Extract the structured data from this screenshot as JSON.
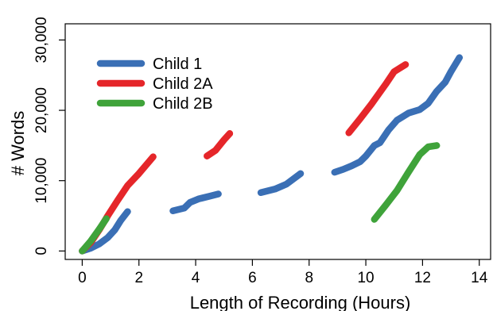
{
  "chart_data": {
    "type": "line",
    "title": "",
    "xlabel": "Length of Recording (Hours)",
    "ylabel": "# Words",
    "xlim": [
      -0.6,
      14.4
    ],
    "ylim": [
      -1200,
      32300
    ],
    "x_ticks": [
      0,
      2,
      4,
      6,
      8,
      10,
      12,
      14
    ],
    "y_ticks": [
      0,
      10000,
      20000,
      30000
    ],
    "x_tick_labels": [
      "0",
      "2",
      "4",
      "6",
      "8",
      "10",
      "12",
      "14"
    ],
    "y_tick_labels": [
      "0",
      "10,000",
      "20,000",
      "30,000"
    ],
    "grid": false,
    "legend_position": "top-left",
    "series": [
      {
        "name": "Child 1",
        "color": "#3a6fb5",
        "segments": [
          [
            [
              0.0,
              0
            ],
            [
              0.3,
              400
            ],
            [
              0.6,
              1000
            ],
            [
              0.9,
              1900
            ],
            [
              1.15,
              3000
            ],
            [
              1.35,
              4300
            ],
            [
              1.6,
              5600
            ]
          ],
          [
            [
              3.2,
              5700
            ],
            [
              3.6,
              6100
            ],
            [
              3.8,
              6900
            ],
            [
              4.1,
              7400
            ],
            [
              4.5,
              7800
            ],
            [
              4.8,
              8100
            ]
          ],
          [
            [
              6.3,
              8300
            ],
            [
              6.8,
              8800
            ],
            [
              7.2,
              9500
            ],
            [
              7.7,
              11000
            ]
          ],
          [
            [
              8.9,
              11200
            ],
            [
              9.2,
              11600
            ],
            [
              9.5,
              12100
            ],
            [
              9.8,
              12700
            ],
            [
              10.0,
              13500
            ],
            [
              10.3,
              15000
            ],
            [
              10.5,
              15400
            ],
            [
              10.8,
              17200
            ],
            [
              11.1,
              18600
            ],
            [
              11.5,
              19600
            ],
            [
              11.9,
              20100
            ],
            [
              12.2,
              21000
            ],
            [
              12.5,
              22700
            ],
            [
              12.8,
              24000
            ],
            [
              13.0,
              25500
            ],
            [
              13.3,
              27500
            ]
          ]
        ]
      },
      {
        "name": "Child 2A",
        "color": "#e5262a",
        "segments": [
          [
            [
              0.0,
              0
            ],
            [
              0.3,
              1200
            ],
            [
              0.6,
              3000
            ],
            [
              0.9,
              5000
            ],
            [
              1.25,
              7200
            ],
            [
              1.6,
              9300
            ],
            [
              2.0,
              11000
            ],
            [
              2.5,
              13400
            ]
          ],
          [
            [
              4.4,
              13500
            ],
            [
              4.7,
              14300
            ],
            [
              5.0,
              15800
            ],
            [
              5.2,
              16700
            ]
          ],
          [
            [
              9.4,
              16800
            ],
            [
              9.8,
              18800
            ],
            [
              10.2,
              20900
            ],
            [
              10.7,
              23700
            ],
            [
              11.0,
              25500
            ],
            [
              11.4,
              26500
            ]
          ]
        ]
      },
      {
        "name": "Child 2B",
        "color": "#3fa33a",
        "segments": [
          [
            [
              0.0,
              0
            ],
            [
              0.3,
              1400
            ],
            [
              0.6,
              3100
            ],
            [
              0.85,
              4600
            ]
          ],
          [
            [
              10.3,
              4500
            ],
            [
              10.7,
              6500
            ],
            [
              11.1,
              8600
            ],
            [
              11.5,
              11200
            ],
            [
              11.9,
              13700
            ],
            [
              12.2,
              14800
            ],
            [
              12.5,
              15000
            ]
          ]
        ]
      }
    ]
  }
}
